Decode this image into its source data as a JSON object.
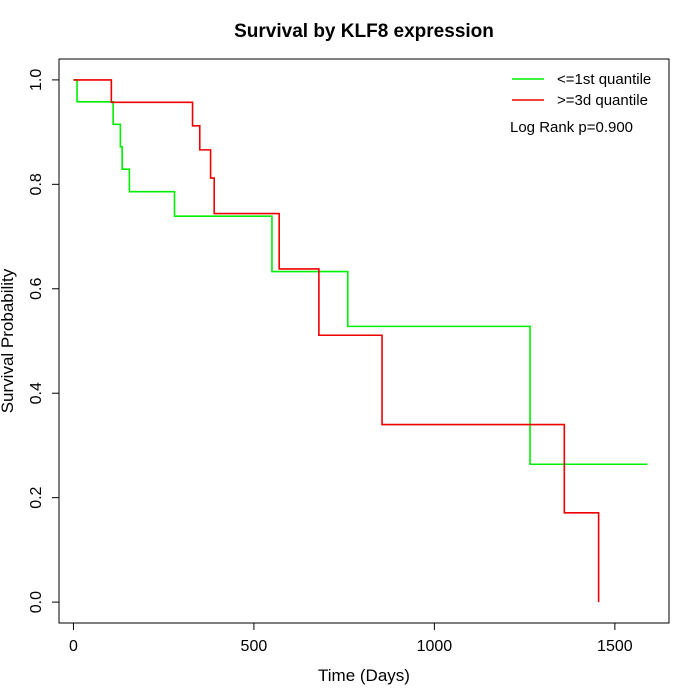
{
  "chart_data": {
    "type": "line",
    "title": "Survival by KLF8 expression",
    "xlabel": "Time (Days)",
    "ylabel": "Survival Probability",
    "xlim": [
      -40,
      1650
    ],
    "ylim": [
      -0.04,
      1.04
    ],
    "x_ticks": [
      0,
      500,
      1000,
      1500
    ],
    "y_ticks": [
      0.0,
      0.2,
      0.4,
      0.6,
      0.8,
      1.0
    ],
    "x_tick_labels": [
      "0",
      "500",
      "1000",
      "1500"
    ],
    "y_tick_labels": [
      "0.0",
      "0.2",
      "0.4",
      "0.6",
      "0.8",
      "1.0"
    ],
    "legend_position": "top-right",
    "annotation": "Log Rank p=0.900",
    "series": [
      {
        "name": "<=1st quantile",
        "color": "#00ee00",
        "steps": [
          [
            0,
            1.0
          ],
          [
            10,
            0.958
          ],
          [
            110,
            0.915
          ],
          [
            130,
            0.872
          ],
          [
            135,
            0.829
          ],
          [
            155,
            0.786
          ],
          [
            280,
            0.739
          ],
          [
            550,
            0.633
          ],
          [
            760,
            0.528
          ],
          [
            1265,
            0.264
          ],
          [
            1590,
            0.264
          ]
        ]
      },
      {
        "name": ">=3d quantile",
        "color": "#ee0000",
        "steps": [
          [
            0,
            1.0
          ],
          [
            105,
            0.957
          ],
          [
            330,
            0.912
          ],
          [
            350,
            0.866
          ],
          [
            380,
            0.812
          ],
          [
            390,
            0.744
          ],
          [
            570,
            0.638
          ],
          [
            680,
            0.511
          ],
          [
            855,
            0.34
          ],
          [
            1360,
            0.171
          ],
          [
            1455,
            0.0
          ]
        ]
      }
    ]
  }
}
